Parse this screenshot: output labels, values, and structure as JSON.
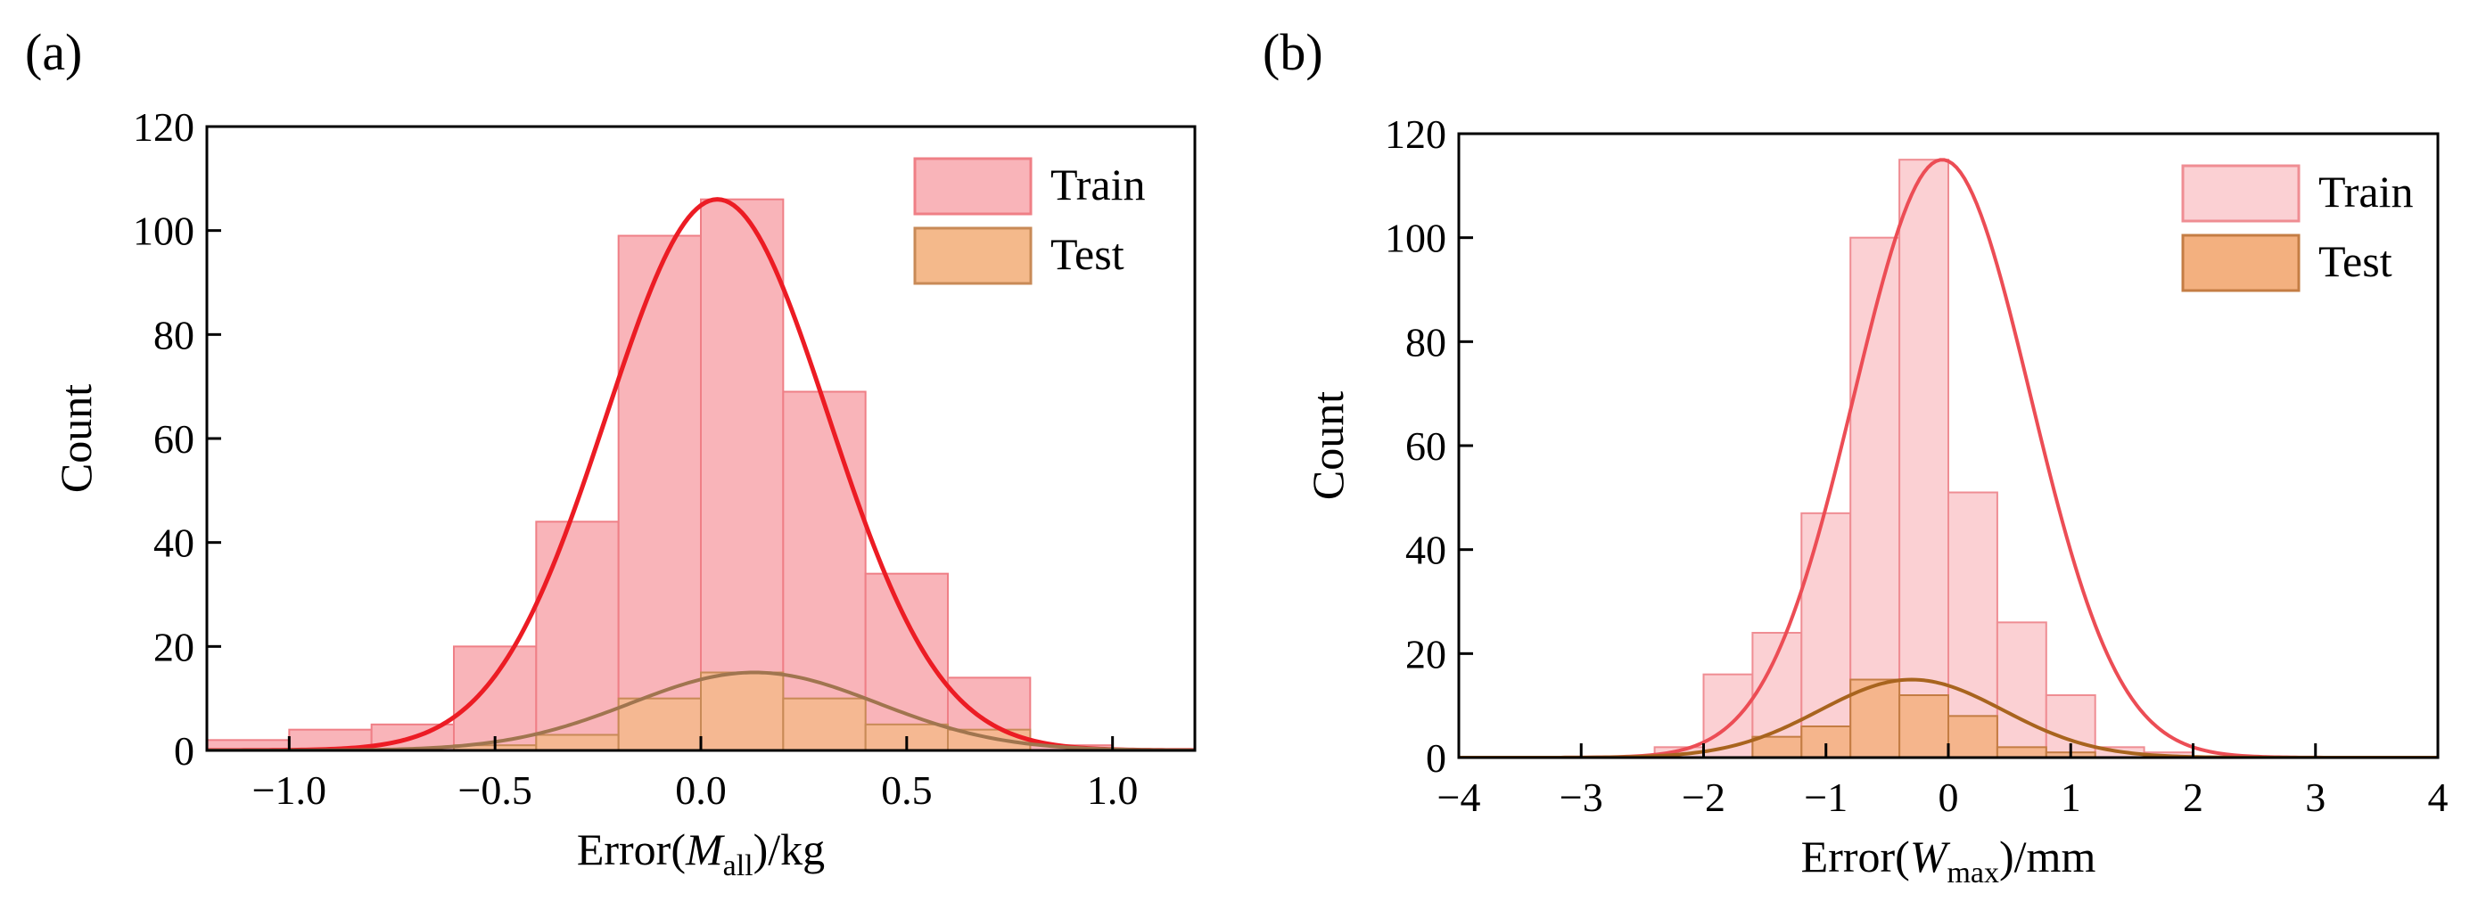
{
  "chart_data": [
    {
      "type": "bar",
      "panel_label": "(a)",
      "xlabel_prefix": "Error(",
      "xlabel_var": "M",
      "xlabel_sub": "all",
      "xlabel_suffix": ")/kg",
      "ylabel": "Count",
      "xlim": [
        -1.2,
        1.2
      ],
      "ylim": [
        0,
        120
      ],
      "x_ticks": [
        -1.0,
        -0.5,
        0.0,
        0.5,
        1.0
      ],
      "x_tick_labels": [
        "−1.0",
        "−0.5",
        "0.0",
        "0.5",
        "1.0"
      ],
      "y_ticks": [
        0,
        20,
        40,
        60,
        80,
        100,
        120
      ],
      "y_tick_labels": [
        "0",
        "20",
        "40",
        "60",
        "80",
        "100",
        "120"
      ],
      "legend_position": "top-right",
      "series": [
        {
          "name": "Train",
          "fill": "#f9b4b9",
          "stroke": "#ef7f86",
          "bins": [
            {
              "x0": -1.2,
              "x1": -1.0,
              "count": 2
            },
            {
              "x0": -1.0,
              "x1": -0.8,
              "count": 4
            },
            {
              "x0": -0.8,
              "x1": -0.6,
              "count": 5
            },
            {
              "x0": -0.6,
              "x1": -0.4,
              "count": 20
            },
            {
              "x0": -0.4,
              "x1": -0.2,
              "count": 44
            },
            {
              "x0": -0.2,
              "x1": 0.0,
              "count": 99
            },
            {
              "x0": 0.0,
              "x1": 0.2,
              "count": 106
            },
            {
              "x0": 0.2,
              "x1": 0.4,
              "count": 69
            },
            {
              "x0": 0.4,
              "x1": 0.6,
              "count": 34
            },
            {
              "x0": 0.6,
              "x1": 0.8,
              "count": 14
            },
            {
              "x0": 0.8,
              "x1": 1.0,
              "count": 1
            }
          ],
          "fit": {
            "mean": 0.04,
            "sigma": 0.27,
            "peak": 106,
            "color": "#ec1c24",
            "width": 5
          }
        },
        {
          "name": "Test",
          "fill": "#f4b98b",
          "stroke": "#c88a57",
          "bins": [
            {
              "x0": -0.6,
              "x1": -0.4,
              "count": 1
            },
            {
              "x0": -0.4,
              "x1": -0.2,
              "count": 3
            },
            {
              "x0": -0.2,
              "x1": 0.0,
              "count": 10
            },
            {
              "x0": 0.0,
              "x1": 0.2,
              "count": 15
            },
            {
              "x0": 0.2,
              "x1": 0.4,
              "count": 10
            },
            {
              "x0": 0.4,
              "x1": 0.6,
              "count": 5
            },
            {
              "x0": 0.6,
              "x1": 0.8,
              "count": 4
            }
          ],
          "fit": {
            "mean": 0.13,
            "sigma": 0.3,
            "peak": 15,
            "color": "#a0754f",
            "width": 4
          }
        }
      ]
    },
    {
      "type": "bar",
      "panel_label": "(b)",
      "xlabel_prefix": "Error(",
      "xlabel_var": "W",
      "xlabel_sub": "max",
      "xlabel_suffix": ")/mm",
      "ylabel": "Count",
      "xlim": [
        -4,
        4
      ],
      "ylim": [
        0,
        120
      ],
      "x_ticks": [
        -4,
        -3,
        -2,
        -1,
        0,
        1,
        2,
        3,
        4
      ],
      "x_tick_labels": [
        "−4",
        "−3",
        "−2",
        "−1",
        "0",
        "1",
        "2",
        "3",
        "4"
      ],
      "y_ticks": [
        0,
        20,
        40,
        60,
        80,
        100,
        120
      ],
      "y_tick_labels": [
        "0",
        "20",
        "40",
        "60",
        "80",
        "100",
        "120"
      ],
      "legend_position": "top-right",
      "series": [
        {
          "name": "Train",
          "fill": "#fbd0d3",
          "stroke": "#ef8d93",
          "bins": [
            {
              "x0": -2.4,
              "x1": -2.0,
              "count": 2
            },
            {
              "x0": -2.0,
              "x1": -1.6,
              "count": 16
            },
            {
              "x0": -1.6,
              "x1": -1.2,
              "count": 24
            },
            {
              "x0": -1.2,
              "x1": -0.8,
              "count": 47
            },
            {
              "x0": -0.8,
              "x1": -0.4,
              "count": 100
            },
            {
              "x0": -0.4,
              "x1": 0.0,
              "count": 115
            },
            {
              "x0": 0.0,
              "x1": 0.4,
              "count": 51
            },
            {
              "x0": 0.4,
              "x1": 0.8,
              "count": 26
            },
            {
              "x0": 0.8,
              "x1": 1.2,
              "count": 12
            },
            {
              "x0": 1.2,
              "x1": 1.6,
              "count": 2
            },
            {
              "x0": 1.6,
              "x1": 2.0,
              "count": 1
            }
          ],
          "fit": {
            "mean": -0.05,
            "sigma": 0.72,
            "peak": 115,
            "color": "#ec4d55",
            "width": 4
          }
        },
        {
          "name": "Test",
          "fill": "#f3b07f",
          "stroke": "#c47d44",
          "bins": [
            {
              "x0": -1.6,
              "x1": -1.2,
              "count": 4
            },
            {
              "x0": -1.2,
              "x1": -0.8,
              "count": 6
            },
            {
              "x0": -0.8,
              "x1": -0.4,
              "count": 15
            },
            {
              "x0": -0.4,
              "x1": 0.0,
              "count": 12
            },
            {
              "x0": 0.0,
              "x1": 0.4,
              "count": 8
            },
            {
              "x0": 0.4,
              "x1": 0.8,
              "count": 2
            },
            {
              "x0": 0.8,
              "x1": 1.2,
              "count": 1
            }
          ],
          "fit": {
            "mean": -0.3,
            "sigma": 0.75,
            "peak": 15,
            "color": "#a8641e",
            "width": 4
          }
        }
      ]
    }
  ]
}
